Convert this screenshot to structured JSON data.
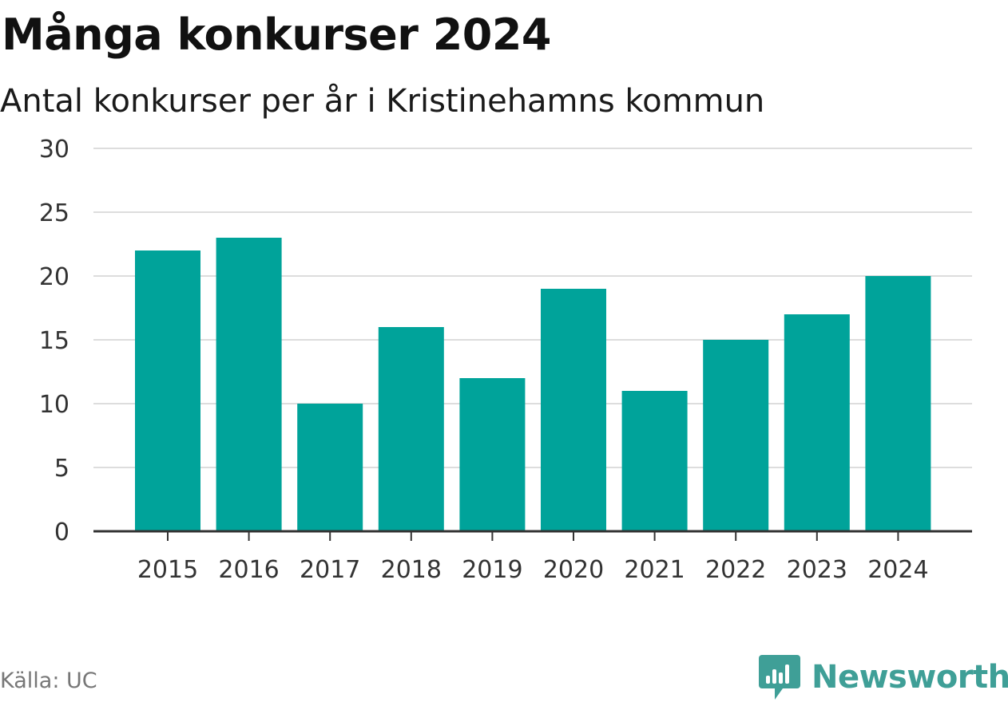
{
  "header": {
    "title": "Många konkurser 2024",
    "subtitle": "Antal konkurser per år i Kristinehamns kommun"
  },
  "footer": {
    "source": "Källa: UC",
    "brand_name": "Newsworthy"
  },
  "colors": {
    "bar": "#00a39a",
    "grid": "#dddddd",
    "axis": "#333333",
    "brand": "#3f9f97"
  },
  "chart_data": {
    "type": "bar",
    "title": "Många konkurser 2024",
    "subtitle": "Antal konkurser per år i Kristinehamns kommun",
    "categories": [
      "2015",
      "2016",
      "2017",
      "2018",
      "2019",
      "2020",
      "2021",
      "2022",
      "2023",
      "2024"
    ],
    "values": [
      22,
      23,
      10,
      16,
      12,
      19,
      11,
      15,
      17,
      20
    ],
    "ylim": [
      0,
      30
    ],
    "yticks": [
      "0",
      "5",
      "10",
      "15",
      "20",
      "25",
      "30"
    ],
    "xlabel": "",
    "ylabel": "",
    "grid": true,
    "legend": "none"
  }
}
